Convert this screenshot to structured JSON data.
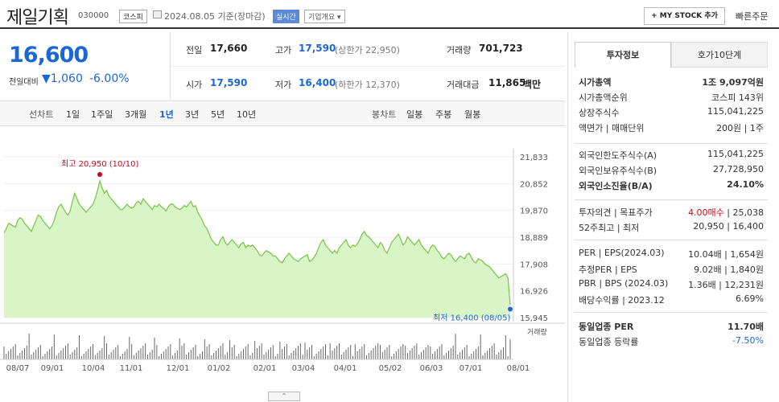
{
  "header": {
    "title": "제일기획",
    "code": "030000",
    "market": "코스피",
    "date_text": "2024.08.05 기준(장마감)",
    "realtime": "실시간",
    "overview": "기업개요 ▾",
    "mystock": "+ MY STOCK 추가",
    "quick_order": "빠른주문"
  },
  "price": {
    "current": "16,600",
    "change_label": "전일대비",
    "change_value": "▼1,060",
    "change_pct": "-6.00%"
  },
  "info": {
    "prev_label": "전일",
    "prev": "17,660",
    "high_label": "고가",
    "high": "17,590",
    "upper_limit": "(상한가 22,950)",
    "volume_label": "거래량",
    "volume": "701,723",
    "open_label": "시가",
    "open": "17,590",
    "low_label": "저가",
    "low": "16,400",
    "lower_limit": "(하한가 12,370)",
    "amount_label": "거래대금",
    "amount": "11,865",
    "amount_unit": "백만"
  },
  "tabs": {
    "line_label": "선차트",
    "periods": [
      "1일",
      "1주일",
      "3개월",
      "1년",
      "3년",
      "5년",
      "10년"
    ],
    "candle_label": "봉차트",
    "candle_periods": [
      "일봉",
      "주봉",
      "월봉"
    ]
  },
  "chart_data": {
    "type": "area",
    "y_ticks": [
      "21,833",
      "20,852",
      "19,870",
      "18,889",
      "17,908",
      "16,926",
      "15,945"
    ],
    "ylim": [
      15945,
      21833
    ],
    "x_ticks": [
      "08/07",
      "09/01",
      "10/04",
      "11/01",
      "12/01",
      "01/02",
      "02/01",
      "03/04",
      "04/01",
      "05/02",
      "06/03",
      "07/01",
      "08/01"
    ],
    "high_annotation": "최고 20,950 (10/10)",
    "low_annotation": "최저 16,400 (08/05)",
    "volume_label": "거래량",
    "values": [
      19050,
      19200,
      19400,
      19350,
      19300,
      19250,
      19500,
      19600,
      19550,
      19400,
      19300,
      19200,
      19100,
      19300,
      19500,
      19700,
      19650,
      19500,
      19400,
      19300,
      19200,
      19300,
      19500,
      19800,
      20000,
      20100,
      19950,
      19800,
      19700,
      19850,
      20200,
      20500,
      20300,
      20100,
      20000,
      19900,
      19800,
      19900,
      20000,
      20100,
      20300,
      20600,
      20950,
      20700,
      20500,
      20600,
      20400,
      20300,
      20200,
      20100,
      20000,
      19900,
      19900,
      20000,
      20100,
      20000,
      19950,
      20000,
      20150,
      20200,
      20100,
      20300,
      20200,
      20100,
      20000,
      19900,
      20050,
      20000,
      20100,
      20000,
      19950,
      19850,
      20000,
      20100,
      20100,
      20000,
      19950,
      19900,
      19950,
      20050,
      20000,
      20100,
      20200,
      20000,
      20050,
      19800,
      19650,
      19500,
      19300,
      19200,
      19000,
      18800,
      18700,
      18600,
      18600,
      18800,
      18900,
      18700,
      18600,
      18700,
      18800,
      18700,
      18600,
      18500,
      18650,
      18700,
      18500,
      18600,
      18550,
      18600,
      18500,
      18400,
      18250,
      18200,
      18300,
      18400,
      18350,
      18300,
      18200,
      18200,
      18100,
      18000,
      17950,
      18100,
      18200,
      18300,
      18200,
      18100,
      18050,
      18000,
      18100,
      18150,
      18200,
      18250,
      18000,
      18050,
      18150,
      18300,
      18500,
      18700,
      18800,
      18600,
      18500,
      18400,
      18300,
      18400,
      18300,
      18500,
      18600,
      18700,
      18800,
      18600,
      18500,
      18600,
      18550,
      18650,
      18800,
      19000,
      19100,
      18950,
      18900,
      18800,
      18700,
      18600,
      18500,
      18700,
      18600,
      18400,
      18300,
      18500,
      18700,
      18800,
      18900,
      19000,
      18800,
      18600,
      18700,
      18900,
      18800,
      18700,
      18600,
      18700,
      18800,
      18600,
      18500,
      18400,
      18300,
      18500,
      18600,
      18550,
      18400,
      18300,
      18150,
      18100,
      18200,
      18300,
      18250,
      18100,
      18000,
      18100,
      18200,
      18150,
      18100,
      18250,
      18300,
      18150,
      18000,
      17950,
      18100,
      18050,
      18000,
      17900,
      17850,
      17800,
      17700,
      17600,
      17500,
      17400,
      17450,
      17500,
      17550,
      17400,
      16400
    ]
  },
  "right": {
    "tab_active": "투자정보",
    "tab2": "호가10단계",
    "rows1": [
      {
        "label": "시가총액",
        "value": "1조 9,097억원",
        "bold": true
      },
      {
        "label": "시가총액순위",
        "value": "코스피 143위"
      },
      {
        "label": "상장주식수",
        "value": "115,041,225"
      },
      {
        "label": "액면가 | 매매단위",
        "value": "200원 | 1주"
      }
    ],
    "rows2": [
      {
        "label": "외국인한도주식수(A)",
        "value": "115,041,225"
      },
      {
        "label": "외국인보유주식수(B)",
        "value": "27,728,950"
      },
      {
        "label": "외국인소진율(B/A)",
        "value": "24.10%",
        "bold": true
      }
    ],
    "rows3": [
      {
        "label": "투자의견 | 목표주가",
        "value_red": "4.00매수",
        "value": " | 25,038"
      },
      {
        "label": "52주최고 | 최저",
        "value": "20,950 | 16,400"
      }
    ],
    "rows4": [
      {
        "label": "PER | EPS(2024.03)",
        "value": "10.04배 | 1,654원"
      },
      {
        "label": "추정PER | EPS",
        "value": "9.02배 | 1,840원"
      },
      {
        "label": "PBR | BPS (2024.03)",
        "value": "1.36배 | 12,231원"
      },
      {
        "label": "배당수익률 | 2023.12",
        "value": "6.69%"
      }
    ],
    "rows5": [
      {
        "label": "동일업종 PER",
        "value": "11.70배",
        "bold": true
      },
      {
        "label": "동일업종 등락률",
        "value": "-7.50%",
        "blue": true
      }
    ]
  },
  "colors": {
    "accent_blue": "#1d66d6",
    "area_fill": "#d9f5c8",
    "area_line": "#76c442",
    "red": "#d0021b"
  }
}
